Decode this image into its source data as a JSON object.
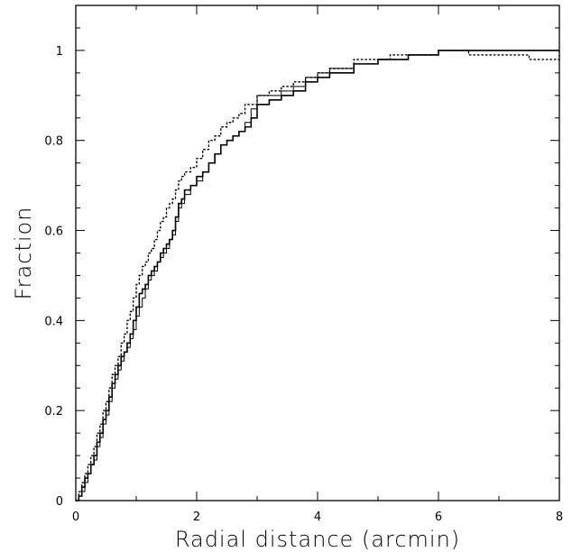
{
  "chart_data": {
    "type": "line",
    "title": "",
    "xlabel": "Radial distance (arcmin)",
    "ylabel": "Fraction",
    "xlim": [
      0,
      8
    ],
    "ylim": [
      0,
      1.1
    ],
    "x_ticks": [
      "0",
      "2",
      "4",
      "6",
      "8"
    ],
    "y_ticks": [
      "0",
      "0.2",
      "0.4",
      "0.6",
      "0.8",
      "1"
    ],
    "grid": false,
    "legend": "none",
    "series": [
      {
        "style": "solid-thick",
        "color": "#000000",
        "x": [
          0.0,
          0.05,
          0.1,
          0.15,
          0.2,
          0.25,
          0.3,
          0.35,
          0.4,
          0.45,
          0.5,
          0.55,
          0.6,
          0.65,
          0.7,
          0.75,
          0.8,
          0.85,
          0.9,
          0.95,
          1.0,
          1.05,
          1.1,
          1.15,
          1.2,
          1.25,
          1.3,
          1.35,
          1.4,
          1.45,
          1.5,
          1.55,
          1.6,
          1.65,
          1.7,
          1.75,
          1.8,
          1.9,
          2.0,
          2.1,
          2.2,
          2.3,
          2.4,
          2.5,
          2.6,
          2.7,
          2.8,
          2.9,
          3.0,
          3.2,
          3.4,
          3.6,
          3.8,
          4.0,
          4.2,
          4.6,
          5.0,
          5.2,
          5.5,
          6.0,
          8.0
        ],
        "y": [
          0.0,
          0.01,
          0.03,
          0.05,
          0.06,
          0.08,
          0.1,
          0.13,
          0.15,
          0.18,
          0.2,
          0.23,
          0.26,
          0.28,
          0.3,
          0.32,
          0.33,
          0.35,
          0.37,
          0.4,
          0.43,
          0.46,
          0.47,
          0.48,
          0.5,
          0.51,
          0.52,
          0.53,
          0.55,
          0.56,
          0.57,
          0.58,
          0.6,
          0.63,
          0.66,
          0.67,
          0.69,
          0.7,
          0.72,
          0.73,
          0.75,
          0.77,
          0.79,
          0.8,
          0.81,
          0.82,
          0.83,
          0.85,
          0.88,
          0.89,
          0.9,
          0.91,
          0.93,
          0.94,
          0.95,
          0.97,
          0.98,
          0.98,
          0.99,
          1.0,
          1.0
        ]
      },
      {
        "style": "solid-thin",
        "color": "#000000",
        "x": [
          0.0,
          0.05,
          0.1,
          0.15,
          0.2,
          0.25,
          0.3,
          0.35,
          0.4,
          0.45,
          0.5,
          0.55,
          0.6,
          0.65,
          0.7,
          0.75,
          0.8,
          0.85,
          0.9,
          0.95,
          1.0,
          1.05,
          1.1,
          1.15,
          1.2,
          1.25,
          1.3,
          1.35,
          1.4,
          1.45,
          1.5,
          1.55,
          1.6,
          1.65,
          1.7,
          1.75,
          1.8,
          1.9,
          2.0,
          2.1,
          2.2,
          2.3,
          2.4,
          2.5,
          2.6,
          2.7,
          2.8,
          2.9,
          3.0,
          3.2,
          3.4,
          3.6,
          3.8,
          4.0,
          4.2,
          4.6,
          5.0,
          5.2,
          5.5,
          6.0,
          8.0
        ],
        "y": [
          0.0,
          0.01,
          0.02,
          0.04,
          0.06,
          0.08,
          0.09,
          0.12,
          0.14,
          0.17,
          0.19,
          0.22,
          0.25,
          0.27,
          0.29,
          0.31,
          0.33,
          0.34,
          0.36,
          0.38,
          0.41,
          0.43,
          0.45,
          0.47,
          0.49,
          0.5,
          0.51,
          0.53,
          0.54,
          0.55,
          0.56,
          0.58,
          0.59,
          0.62,
          0.65,
          0.66,
          0.68,
          0.7,
          0.71,
          0.73,
          0.75,
          0.77,
          0.79,
          0.8,
          0.81,
          0.82,
          0.84,
          0.87,
          0.9,
          0.9,
          0.91,
          0.92,
          0.94,
          0.95,
          0.96,
          0.97,
          0.98,
          0.98,
          0.99,
          1.0,
          1.0
        ]
      },
      {
        "style": "dotted",
        "color": "#000000",
        "x": [
          0.0,
          0.05,
          0.1,
          0.15,
          0.2,
          0.25,
          0.3,
          0.35,
          0.4,
          0.45,
          0.5,
          0.55,
          0.6,
          0.65,
          0.7,
          0.75,
          0.8,
          0.85,
          0.9,
          0.95,
          1.0,
          1.05,
          1.1,
          1.15,
          1.2,
          1.25,
          1.3,
          1.35,
          1.4,
          1.45,
          1.5,
          1.55,
          1.6,
          1.65,
          1.7,
          1.75,
          1.8,
          1.9,
          2.0,
          2.1,
          2.2,
          2.3,
          2.4,
          2.5,
          2.6,
          2.7,
          2.8,
          3.0,
          3.2,
          3.4,
          3.6,
          3.8,
          4.0,
          4.2,
          4.6,
          5.0,
          5.2,
          5.5,
          6.0,
          6.5,
          7.0,
          7.5,
          8.0
        ],
        "y": [
          0.0,
          0.02,
          0.04,
          0.06,
          0.08,
          0.1,
          0.12,
          0.15,
          0.17,
          0.2,
          0.22,
          0.25,
          0.28,
          0.3,
          0.32,
          0.35,
          0.37,
          0.4,
          0.42,
          0.45,
          0.48,
          0.5,
          0.52,
          0.53,
          0.55,
          0.56,
          0.58,
          0.6,
          0.62,
          0.63,
          0.65,
          0.66,
          0.67,
          0.69,
          0.71,
          0.72,
          0.73,
          0.74,
          0.76,
          0.78,
          0.8,
          0.81,
          0.83,
          0.84,
          0.85,
          0.86,
          0.88,
          0.9,
          0.91,
          0.92,
          0.93,
          0.94,
          0.95,
          0.96,
          0.98,
          0.98,
          0.99,
          0.99,
          1.0,
          0.99,
          0.99,
          0.98,
          1.0
        ]
      }
    ]
  }
}
